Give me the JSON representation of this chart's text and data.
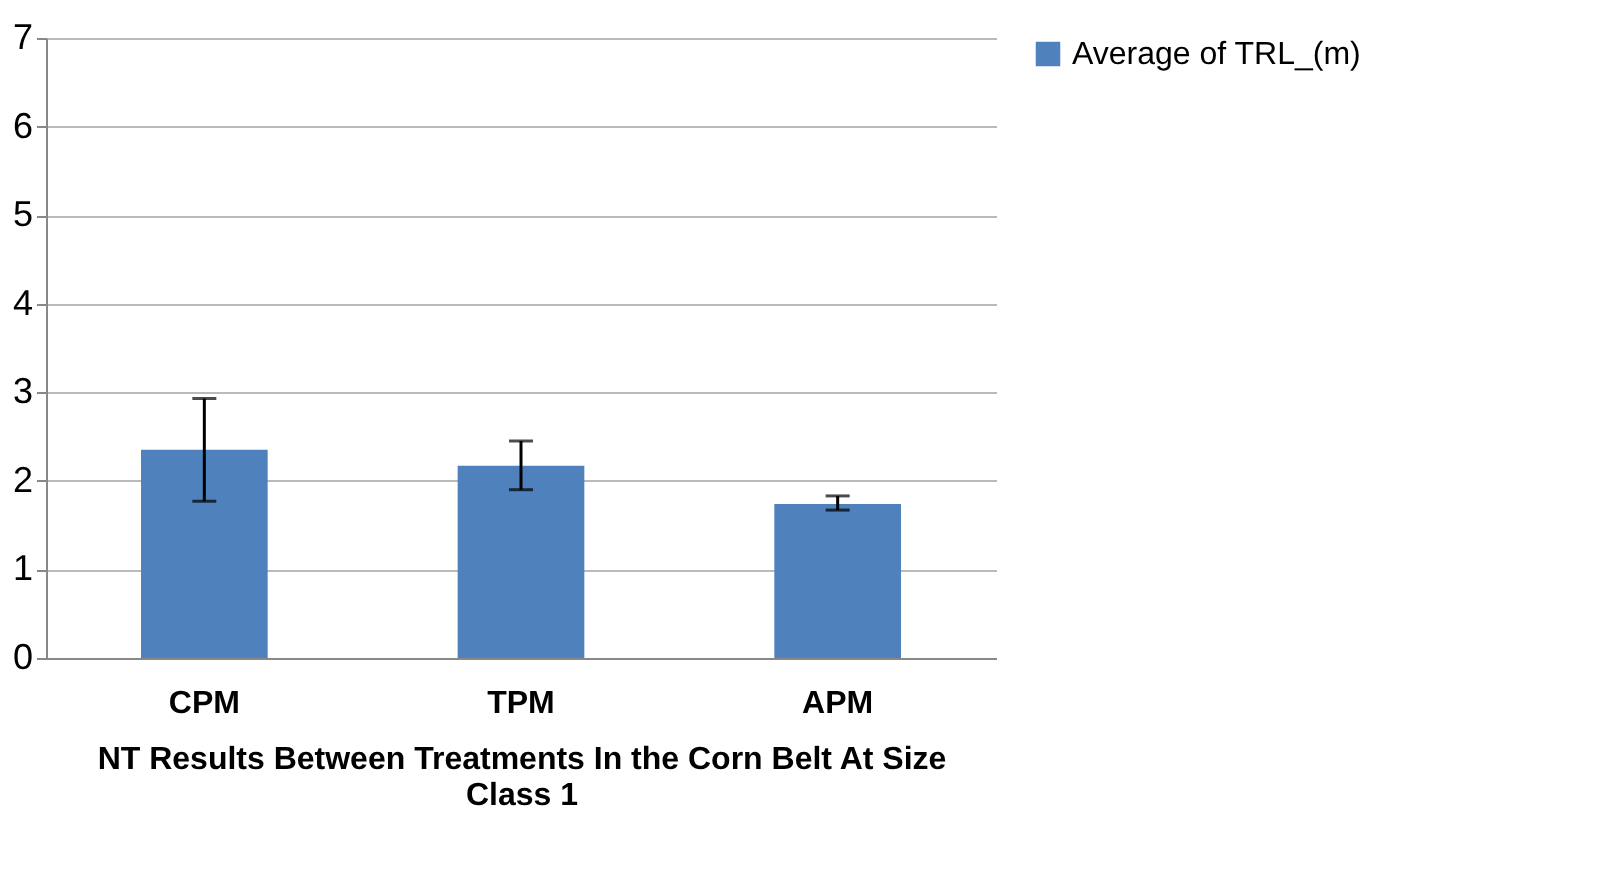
{
  "chart_data": {
    "type": "bar",
    "xlabel": "NT Results Between Treatments In the Corn Belt At Size Class 1",
    "categories": [
      "CPM",
      "TPM",
      "APM"
    ],
    "series": [
      {
        "name": "Average of TRL_(m)",
        "color": "#4f81bd",
        "values": [
          2.35,
          2.17,
          1.74
        ],
        "errors": [
          [
            1.77,
            2.93
          ],
          [
            1.9,
            2.45
          ],
          [
            1.67,
            1.83
          ]
        ]
      }
    ],
    "ylim": [
      0,
      7
    ],
    "yticks": [
      0,
      1,
      2,
      3,
      4,
      5,
      6,
      7
    ],
    "grid": "y",
    "legend": "right"
  }
}
